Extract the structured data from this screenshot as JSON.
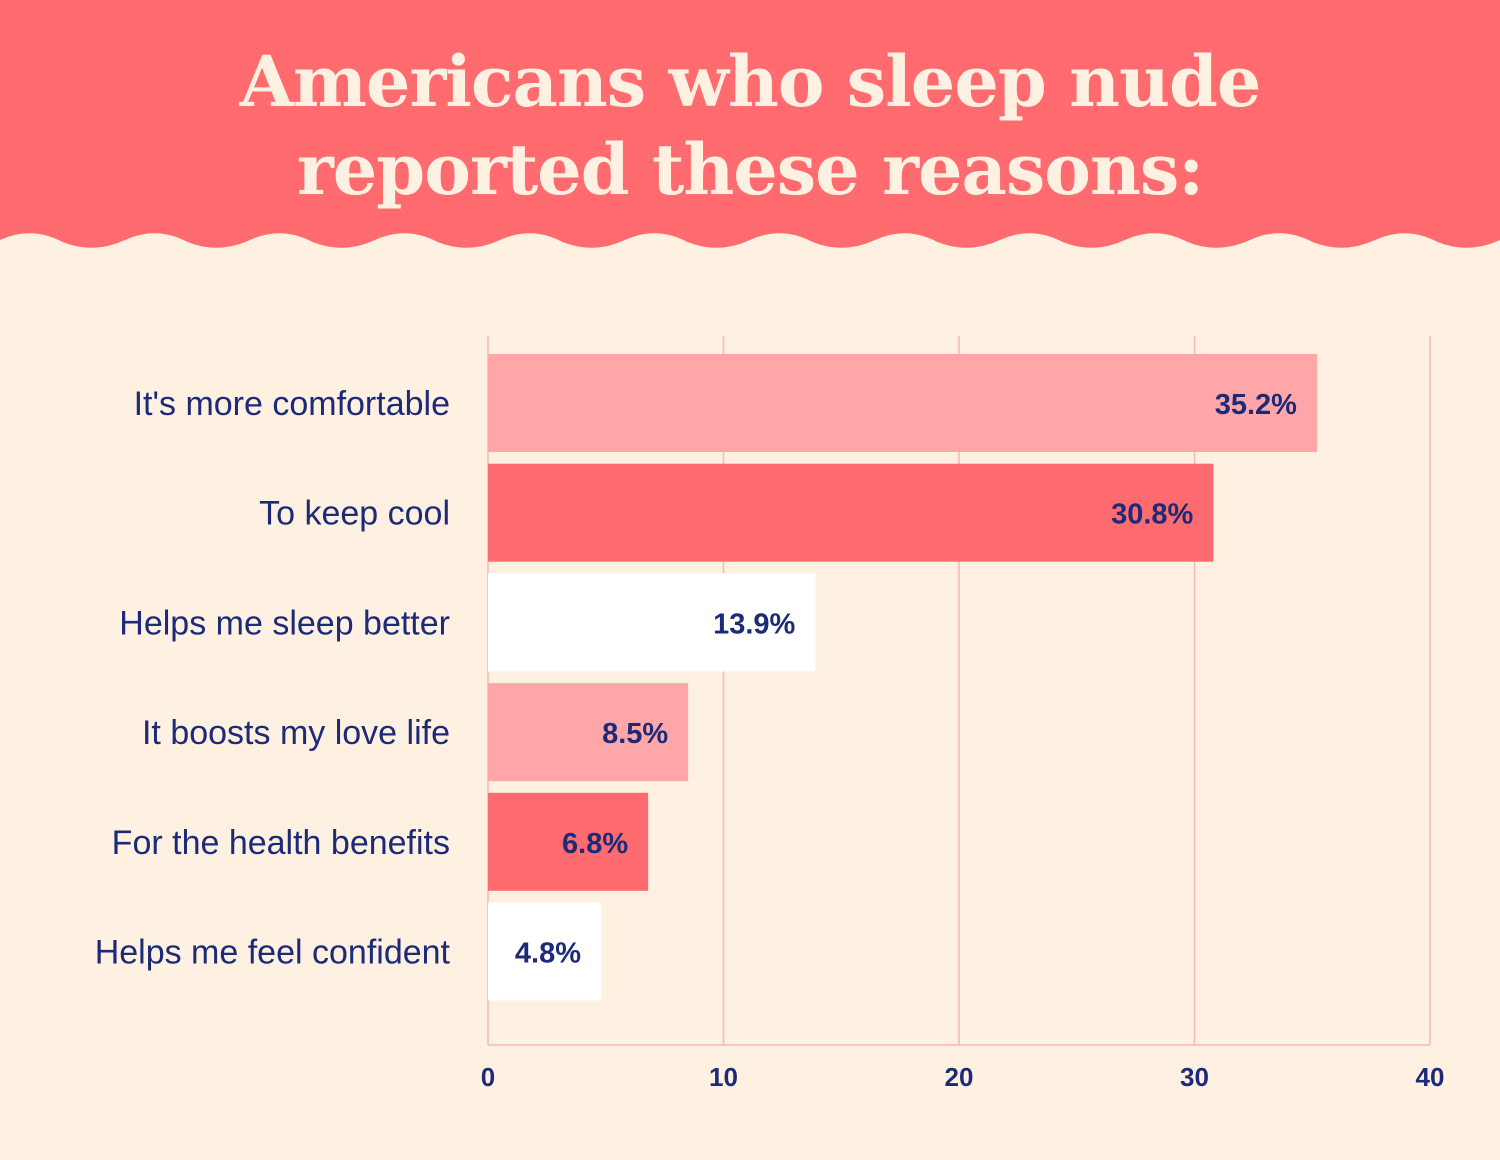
{
  "title": {
    "line1": "Americans who sleep nude",
    "line2": "reported these reasons:"
  },
  "colors": {
    "background": "#FEF1E2",
    "header": "#FF6B6E",
    "title_text": "#FEF1E2",
    "text": "#1C2A78",
    "grid": "#F5B8B5",
    "bar_light": "#FFA6A9",
    "bar_coral": "#FF6B6E",
    "bar_white": "#FFFFFF"
  },
  "chart_data": {
    "type": "bar",
    "orientation": "horizontal",
    "title": "Americans who sleep nude reported these reasons:",
    "xlabel": "",
    "ylabel": "",
    "categories": [
      "It's more comfortable",
      "To keep cool",
      "Helps me sleep better",
      "It boosts my love life",
      "For the health benefits",
      "Helps me feel confident"
    ],
    "values": [
      35.2,
      30.8,
      13.9,
      8.5,
      6.8,
      4.8
    ],
    "value_labels": [
      "35.2%",
      "30.8%",
      "13.9%",
      "8.5%",
      "6.8%",
      "4.8%"
    ],
    "bar_colors": [
      "#FFA6A9",
      "#FF6B6E",
      "#FFFFFF",
      "#FFA6A9",
      "#FF6B6E",
      "#FFFFFF"
    ],
    "xlim": [
      0,
      40
    ],
    "xticks": [
      0,
      10,
      20,
      30,
      40
    ],
    "grid": true,
    "legend": "none"
  }
}
